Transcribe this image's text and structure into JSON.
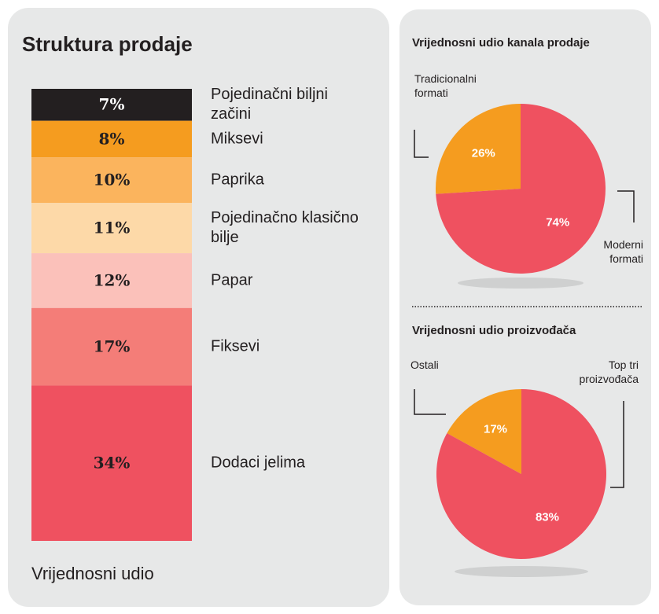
{
  "chart_data": [
    {
      "type": "stacked-bar",
      "title": "Struktura prodaje",
      "x_label": "Vrijednosni udio",
      "series": [
        {
          "name": "Pojedinačni biljni začini",
          "color": "#231f20",
          "values": [
            7
          ],
          "value_labels": [
            "7%"
          ]
        },
        {
          "name": "Miksevi",
          "color": "#f59c1f",
          "values": [
            8
          ],
          "value_labels": [
            "8%"
          ]
        },
        {
          "name": "Paprika",
          "color": "#fbb45d",
          "values": [
            10
          ],
          "value_labels": [
            "10%"
          ]
        },
        {
          "name": "Pojedinačno klasično bilje",
          "color": "#fdd9a8",
          "values": [
            11
          ],
          "value_labels": [
            "11%"
          ]
        },
        {
          "name": "Papar",
          "color": "#fbc1ba",
          "values": [
            12
          ],
          "value_labels": [
            "12%"
          ]
        },
        {
          "name": "Fiksevi",
          "color": "#f47d78",
          "values": [
            17
          ],
          "value_labels": [
            "17%"
          ]
        },
        {
          "name": "Dodaci jelima",
          "color": "#ef5160",
          "values": [
            34
          ],
          "value_labels": [
            "34%"
          ]
        }
      ]
    },
    {
      "type": "pie",
      "title": "Vrijednosni udio kanala prodaje",
      "categories": [
        "Tradicionalni formati",
        "Moderni formati"
      ],
      "values": [
        26,
        74
      ],
      "value_labels": [
        "26%",
        "74%"
      ],
      "colors": [
        "#f59c1f",
        "#ef5160"
      ]
    },
    {
      "type": "pie",
      "title": "Vrijednosni udio proizvođača",
      "categories": [
        "Ostali",
        "Top tri proizvođača"
      ],
      "values": [
        17,
        83
      ],
      "value_labels": [
        "17%",
        "83%"
      ],
      "colors": [
        "#f59c1f",
        "#ef5160"
      ]
    }
  ]
}
